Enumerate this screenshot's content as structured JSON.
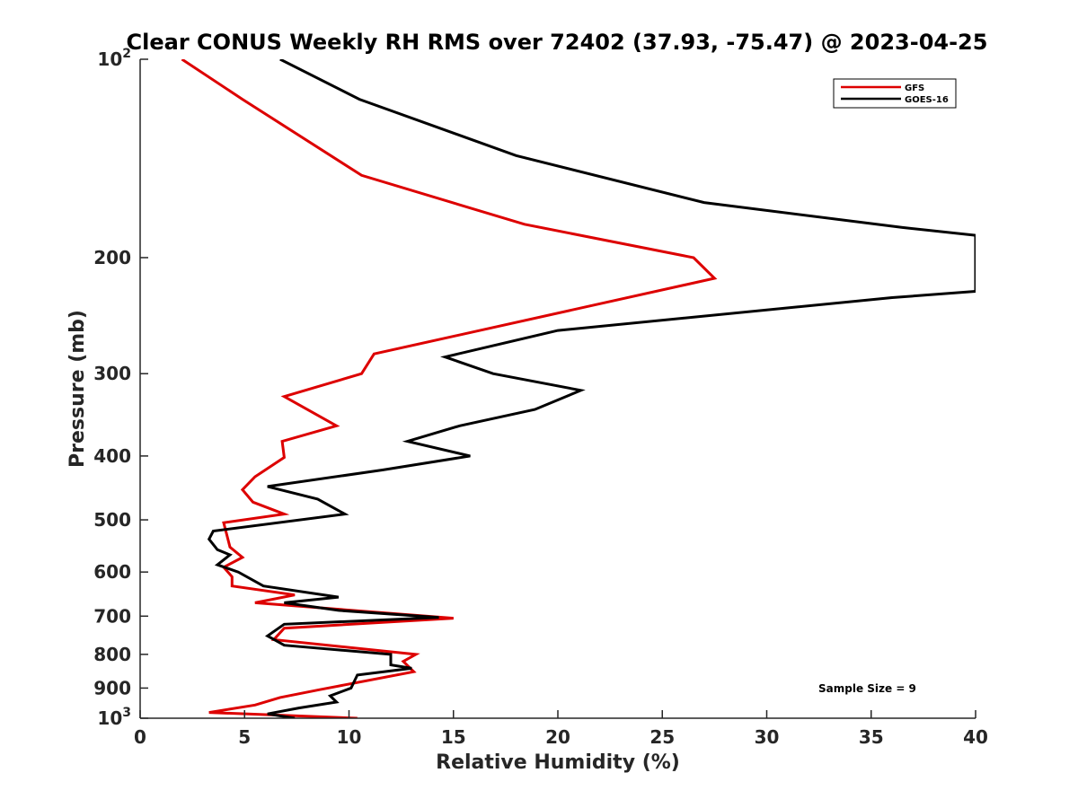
{
  "chart_data": {
    "type": "line",
    "title": "Clear CONUS Weekly RH RMS over 72402 (37.93, -75.47) @ 2023-04-25",
    "xlabel": "Relative Humidity (%)",
    "ylabel": "Pressure (mb)",
    "xlim": [
      0,
      40
    ],
    "ylim": [
      100,
      1000
    ],
    "yscale": "log",
    "yreversed": true,
    "grid": false,
    "x_ticks": [
      0,
      5,
      10,
      15,
      20,
      25,
      30,
      35,
      40
    ],
    "x_tick_labels": [
      "0",
      "5",
      "10",
      "15",
      "20",
      "25",
      "30",
      "35",
      "40"
    ],
    "y_ticks": [
      100,
      200,
      300,
      400,
      500,
      600,
      700,
      800,
      900,
      1000
    ],
    "y_tick_labels": [
      {
        "base": "10",
        "exp": "2"
      },
      {
        "base": "200",
        "exp": ""
      },
      {
        "base": "300",
        "exp": ""
      },
      {
        "base": "400",
        "exp": ""
      },
      {
        "base": "500",
        "exp": ""
      },
      {
        "base": "600",
        "exp": ""
      },
      {
        "base": "700",
        "exp": ""
      },
      {
        "base": "800",
        "exp": ""
      },
      {
        "base": "900",
        "exp": ""
      },
      {
        "base": "10",
        "exp": "3"
      }
    ],
    "legend_position": "top-right",
    "annotation": "Sample Size = 9",
    "series": [
      {
        "name": "GFS",
        "color": "#dd0000",
        "points": [
          [
            2.0,
            100
          ],
          [
            4.9,
            115
          ],
          [
            10.6,
            150
          ],
          [
            18.4,
            178
          ],
          [
            26.5,
            200
          ],
          [
            27.5,
            215
          ],
          [
            11.2,
            280
          ],
          [
            10.6,
            300
          ],
          [
            6.9,
            325
          ],
          [
            9.4,
            360
          ],
          [
            6.8,
            380
          ],
          [
            6.9,
            402
          ],
          [
            5.5,
            430
          ],
          [
            4.9,
            450
          ],
          [
            5.4,
            470
          ],
          [
            6.9,
            490
          ],
          [
            4.0,
            505
          ],
          [
            4.3,
            550
          ],
          [
            4.9,
            570
          ],
          [
            4.0,
            590
          ],
          [
            4.4,
            610
          ],
          [
            4.4,
            630
          ],
          [
            7.4,
            650
          ],
          [
            5.5,
            668
          ],
          [
            15.0,
            705
          ],
          [
            6.9,
            730
          ],
          [
            6.4,
            760
          ],
          [
            13.2,
            800
          ],
          [
            12.6,
            820
          ],
          [
            13.1,
            850
          ],
          [
            8.6,
            905
          ],
          [
            6.7,
            930
          ],
          [
            5.5,
            955
          ],
          [
            3.3,
            980
          ],
          [
            10.4,
            1000
          ]
        ]
      },
      {
        "name": "GOES-16",
        "color": "#000000",
        "points": [
          [
            6.7,
            100
          ],
          [
            10.5,
            115
          ],
          [
            18.0,
            140
          ],
          [
            27.0,
            165
          ],
          [
            36.5,
            180
          ],
          [
            40.0,
            185
          ],
          [
            40.0,
            225
          ],
          [
            36.0,
            230
          ],
          [
            20.0,
            258
          ],
          [
            14.6,
            283
          ],
          [
            16.9,
            300
          ],
          [
            21.1,
            318
          ],
          [
            18.9,
            340
          ],
          [
            15.3,
            360
          ],
          [
            12.8,
            380
          ],
          [
            15.8,
            400
          ],
          [
            11.6,
            420
          ],
          [
            6.1,
            445
          ],
          [
            8.5,
            465
          ],
          [
            9.8,
            490
          ],
          [
            3.5,
            520
          ],
          [
            3.3,
            535
          ],
          [
            3.7,
            555
          ],
          [
            4.3,
            565
          ],
          [
            3.7,
            585
          ],
          [
            4.7,
            600
          ],
          [
            5.9,
            630
          ],
          [
            9.5,
            655
          ],
          [
            6.9,
            668
          ],
          [
            9.5,
            686
          ],
          [
            14.3,
            703
          ],
          [
            6.9,
            720
          ],
          [
            6.1,
            750
          ],
          [
            6.9,
            775
          ],
          [
            12.0,
            800
          ],
          [
            12.0,
            830
          ],
          [
            13.0,
            840
          ],
          [
            10.4,
            860
          ],
          [
            10.1,
            900
          ],
          [
            9.1,
            925
          ],
          [
            9.4,
            945
          ],
          [
            7.6,
            965
          ],
          [
            6.1,
            985
          ],
          [
            7.4,
            1000
          ]
        ]
      }
    ]
  }
}
